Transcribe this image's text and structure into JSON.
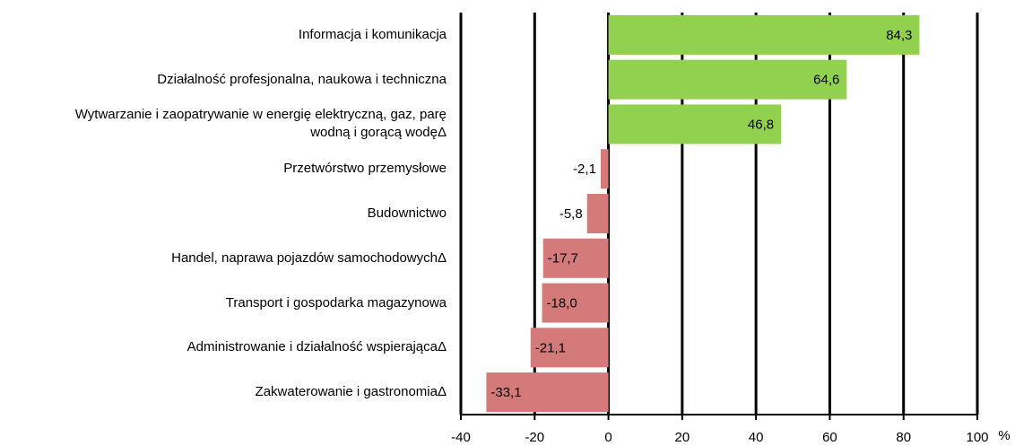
{
  "chart_data": {
    "type": "barh",
    "categories": [
      "Informacja i komunikacja",
      "Działalność profesjonalna, naukowa i techniczna",
      "Wytwarzanie i zaopatrywanie w energię elektryczną, gaz, parę\nwodną i gorącą wodęΔ",
      "Przetwórstwo przemysłowe",
      "Budownictwo",
      "Handel, naprawa pojazdów samochodowychΔ",
      "Transport i gospodarka magazynowa",
      "Administrowanie i działalność wspierającaΔ",
      "Zakwaterowanie i gastronomiaΔ"
    ],
    "values": [
      84.3,
      64.6,
      46.8,
      -2.1,
      -5.8,
      -17.7,
      -18.0,
      -21.1,
      -33.1
    ],
    "value_labels": [
      "84,3",
      "64,6",
      "46,8",
      "-2,1",
      "-5,8",
      "-17,7",
      "-18,0",
      "-21,1",
      "-33,1"
    ],
    "positive_color": "#92d050",
    "negative_color": "#d47a7a",
    "xlim": [
      -40,
      100
    ],
    "xticks": [
      -40,
      -20,
      0,
      20,
      40,
      60,
      80,
      100
    ],
    "x_unit_label": "%",
    "grid": true
  }
}
